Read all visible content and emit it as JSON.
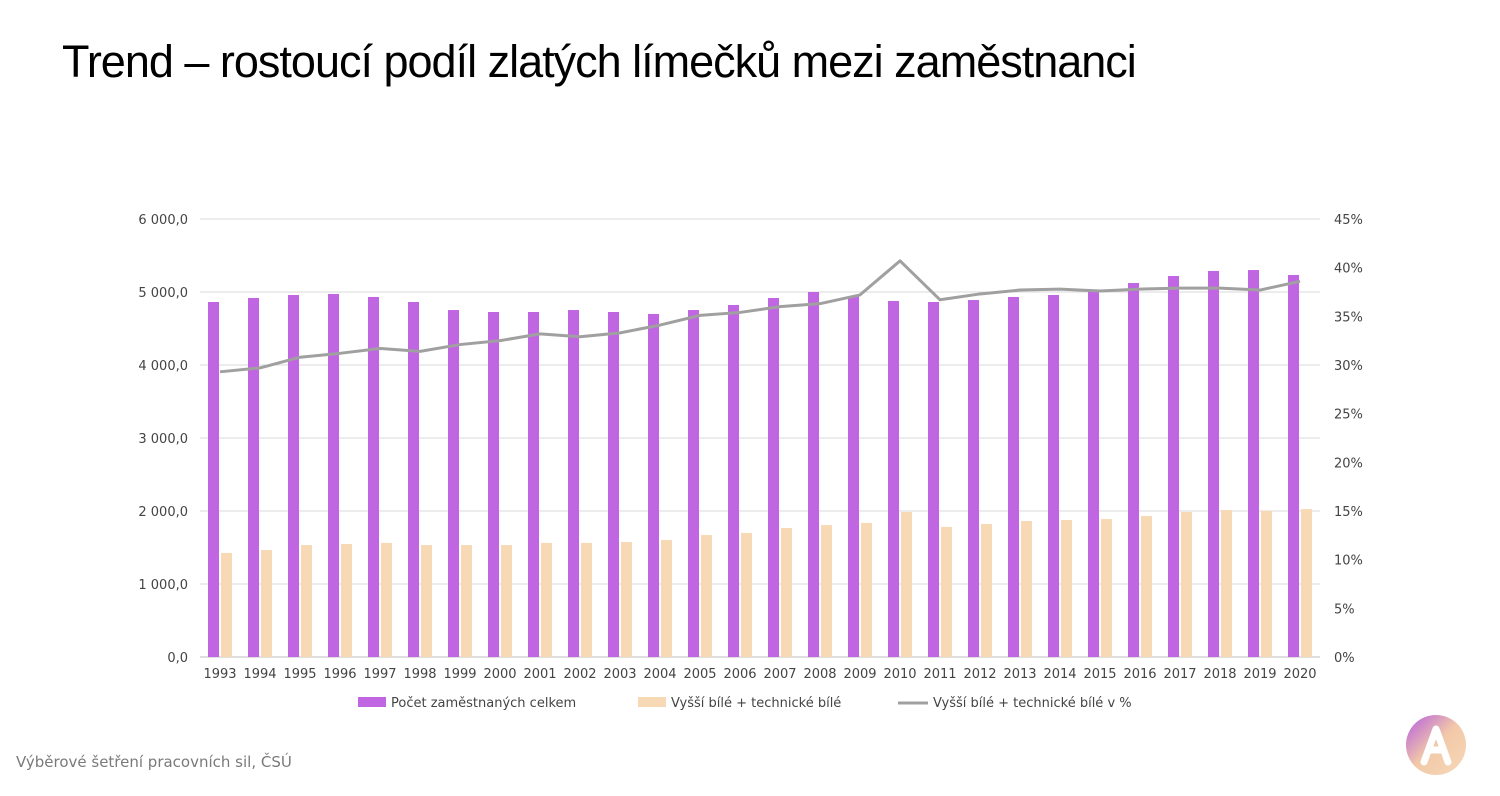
{
  "title": "Trend – rostoucí podíl zlatých límečků mezi zaměstnanci",
  "source": "Výběrové šetření pracovních sil, ČSÚ",
  "chart_data": {
    "type": "bar",
    "categories": [
      "1993",
      "1994",
      "1995",
      "1996",
      "1997",
      "1998",
      "1999",
      "2000",
      "2001",
      "2002",
      "2003",
      "2004",
      "2005",
      "2006",
      "2007",
      "2008",
      "2009",
      "2010",
      "2011",
      "2012",
      "2013",
      "2014",
      "2015",
      "2016",
      "2017",
      "2018",
      "2019",
      "2020"
    ],
    "series": [
      {
        "name": "Počet zaměstnaných celkem",
        "type": "bar",
        "axis": "left",
        "color": "#c066e3",
        "values": [
          4863,
          4918,
          4959,
          4973,
          4932,
          4863,
          4753,
          4726,
          4726,
          4753,
          4726,
          4699,
          4753,
          4822,
          4918,
          5000,
          4945,
          4877,
          4863,
          4890,
          4932,
          4959,
          5014,
          5123,
          5219,
          5288,
          5301,
          5233
        ]
      },
      {
        "name": "Vyšší bílé + technické bílé",
        "type": "bar",
        "axis": "left",
        "color": "#f7d9b5",
        "values": [
          1425,
          1466,
          1534,
          1548,
          1562,
          1534,
          1534,
          1534,
          1562,
          1562,
          1575,
          1603,
          1671,
          1699,
          1767,
          1808,
          1836,
          1986,
          1781,
          1822,
          1863,
          1877,
          1890,
          1932,
          1986,
          2014,
          2000,
          2027
        ]
      },
      {
        "name": "Vyšší bílé + technické bílé v %",
        "type": "line",
        "axis": "right",
        "color": "#a0a0a0",
        "values": [
          29.3,
          29.7,
          30.8,
          31.2,
          31.7,
          31.4,
          32.1,
          32.5,
          33.2,
          32.9,
          33.3,
          34.1,
          35.1,
          35.4,
          36.0,
          36.3,
          37.2,
          40.7,
          36.7,
          37.3,
          37.7,
          37.8,
          37.6,
          37.8,
          37.9,
          37.9,
          37.7,
          38.6
        ]
      }
    ],
    "y_left": {
      "range": [
        0,
        6000
      ],
      "ticks": [
        "0,0",
        "1 000,0",
        "2 000,0",
        "3 000,0",
        "4 000,0",
        "5 000,0",
        "6 000,0"
      ]
    },
    "y_right": {
      "range": [
        0,
        45
      ],
      "ticks": [
        "0%",
        "5%",
        "10%",
        "15%",
        "20%",
        "25%",
        "30%",
        "35%",
        "40%",
        "45%"
      ]
    },
    "grid": true,
    "legend": "bottom"
  }
}
